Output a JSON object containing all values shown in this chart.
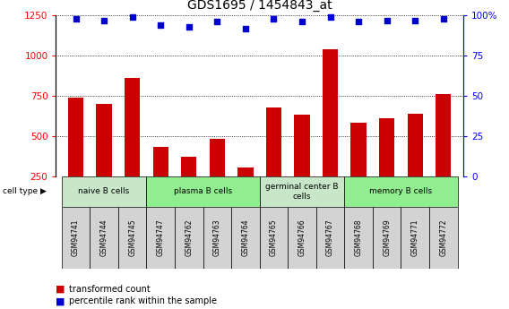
{
  "title": "GDS1695 / 1454843_at",
  "samples": [
    "GSM94741",
    "GSM94744",
    "GSM94745",
    "GSM94747",
    "GSM94762",
    "GSM94763",
    "GSM94764",
    "GSM94765",
    "GSM94766",
    "GSM94767",
    "GSM94768",
    "GSM94769",
    "GSM94771",
    "GSM94772"
  ],
  "transformed_counts": [
    740,
    700,
    860,
    430,
    370,
    480,
    305,
    680,
    630,
    1040,
    580,
    610,
    640,
    760
  ],
  "percentile_ranks": [
    98,
    97,
    99,
    94,
    93,
    96,
    92,
    98,
    96,
    99,
    96,
    97,
    97,
    98
  ],
  "cell_types": [
    {
      "label": "naive B cells",
      "start": 0,
      "end": 3,
      "color": "#c8e6c8"
    },
    {
      "label": "plasma B cells",
      "start": 3,
      "end": 7,
      "color": "#90ee90"
    },
    {
      "label": "germinal center B\ncells",
      "start": 7,
      "end": 10,
      "color": "#c8e6c8"
    },
    {
      "label": "memory B cells",
      "start": 10,
      "end": 14,
      "color": "#90ee90"
    }
  ],
  "bar_color": "#cc0000",
  "dot_color": "#0000cc",
  "ylim_left": [
    250,
    1250
  ],
  "ylim_right": [
    0,
    100
  ],
  "yticks_left": [
    250,
    500,
    750,
    1000,
    1250
  ],
  "yticks_right": [
    0,
    25,
    50,
    75,
    100
  ],
  "ylabel_right_labels": [
    "0",
    "25",
    "50",
    "75",
    "100%"
  ],
  "bar_width": 0.55,
  "sample_box_color": "#d3d3d3",
  "cell_type_label": "cell type"
}
